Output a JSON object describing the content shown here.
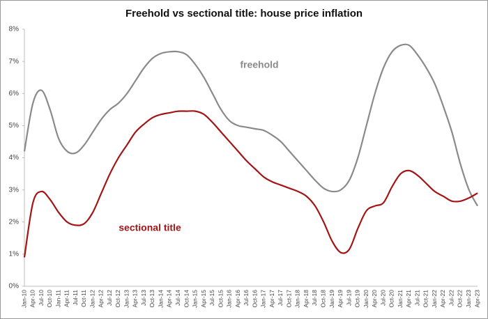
{
  "chart_data": {
    "type": "line",
    "title": "Freehold vs sectional title: house price inflation",
    "categories": [
      "Jan-10",
      "Apr-10",
      "Jul-10",
      "Oct-10",
      "Jan-11",
      "Apr-11",
      "Jul-11",
      "Oct-11",
      "Jan-12",
      "Apr-12",
      "Jul-12",
      "Oct-12",
      "Jan-13",
      "Apr-13",
      "Jul-13",
      "Oct-13",
      "Jan-14",
      "Apr-14",
      "Jul-14",
      "Oct-14",
      "Jan-15",
      "Apr-15",
      "Jul-15",
      "Oct-15",
      "Jan-16",
      "Apr-16",
      "Jul-16",
      "Oct-16",
      "Jan-17",
      "Apr-17",
      "Jul-17",
      "Oct-17",
      "Jan-18",
      "Apr-18",
      "Jul-18",
      "Oct-18",
      "Jan-19",
      "Apr-19",
      "Jul-19",
      "Oct-19",
      "Jan-20",
      "Apr-20",
      "Jul-20",
      "Oct-20",
      "Jan-21",
      "Apr-21",
      "Jul-21",
      "Oct-21",
      "Jan-22",
      "Apr-22",
      "Jul-22",
      "Oct-22",
      "Jan-23",
      "Apr-23"
    ],
    "series": [
      {
        "name": "freehold",
        "color": "#8a8a8a",
        "values": [
          4.2,
          5.7,
          6.1,
          5.5,
          4.6,
          4.2,
          4.15,
          4.4,
          4.8,
          5.2,
          5.5,
          5.7,
          6.0,
          6.4,
          6.8,
          7.1,
          7.25,
          7.3,
          7.3,
          7.2,
          6.9,
          6.5,
          6.0,
          5.5,
          5.15,
          5.0,
          4.95,
          4.9,
          4.85,
          4.7,
          4.5,
          4.2,
          3.9,
          3.6,
          3.3,
          3.05,
          2.95,
          3.0,
          3.3,
          4.0,
          5.0,
          6.0,
          6.8,
          7.3,
          7.5,
          7.5,
          7.2,
          6.8,
          6.3,
          5.6,
          4.8,
          3.8,
          3.0,
          2.5
        ]
      },
      {
        "name": "sectional title",
        "color": "#a31515",
        "values": [
          0.9,
          2.6,
          2.95,
          2.7,
          2.3,
          2.0,
          1.9,
          1.95,
          2.3,
          2.9,
          3.5,
          4.0,
          4.4,
          4.8,
          5.05,
          5.25,
          5.35,
          5.4,
          5.45,
          5.45,
          5.45,
          5.35,
          5.1,
          4.8,
          4.5,
          4.2,
          3.9,
          3.65,
          3.4,
          3.25,
          3.15,
          3.05,
          2.95,
          2.8,
          2.5,
          2.0,
          1.4,
          1.05,
          1.15,
          1.8,
          2.35,
          2.5,
          2.6,
          3.1,
          3.5,
          3.6,
          3.45,
          3.2,
          2.95,
          2.8,
          2.65,
          2.65,
          2.75,
          2.9
        ]
      }
    ],
    "ylim": [
      0,
      8
    ],
    "yticks": [
      {
        "value": 0,
        "label": "0%"
      },
      {
        "value": 1,
        "label": "1%"
      },
      {
        "value": 2,
        "label": "2%"
      },
      {
        "value": 3,
        "label": "3%"
      },
      {
        "value": 4,
        "label": "4%"
      },
      {
        "value": 5,
        "label": "5%"
      },
      {
        "value": 6,
        "label": "6%"
      },
      {
        "value": 7,
        "label": "7%"
      },
      {
        "value": 8,
        "label": "8%"
      }
    ],
    "grid": false
  }
}
